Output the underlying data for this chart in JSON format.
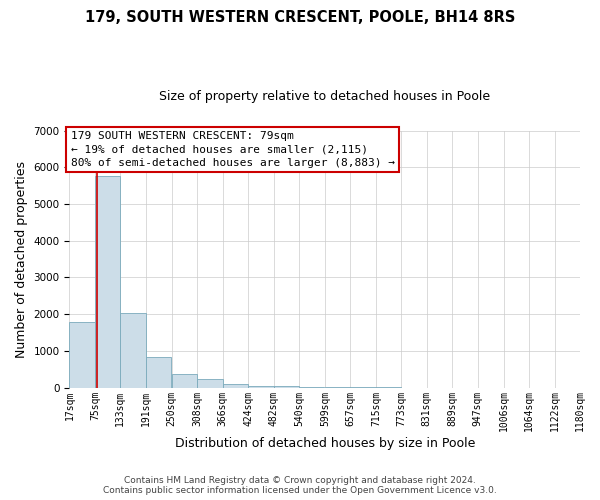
{
  "title": "179, SOUTH WESTERN CRESCENT, POOLE, BH14 8RS",
  "subtitle": "Size of property relative to detached houses in Poole",
  "xlabel": "Distribution of detached houses by size in Poole",
  "ylabel": "Number of detached properties",
  "bar_left_edges": [
    17,
    75,
    133,
    191,
    250,
    308,
    366,
    424,
    482,
    540,
    599,
    657,
    715,
    773,
    831,
    889,
    947,
    1006,
    1064,
    1122
  ],
  "bar_heights": [
    1780,
    5760,
    2040,
    820,
    370,
    220,
    100,
    55,
    30,
    15,
    8,
    4,
    2,
    0,
    0,
    0,
    0,
    0,
    0,
    0
  ],
  "bin_width": 58,
  "bar_color": "#ccdde8",
  "bar_edge_color": "#7aaabb",
  "grid_color": "#cccccc",
  "vline_x": 79,
  "vline_color": "#cc0000",
  "annotation_text": "179 SOUTH WESTERN CRESCENT: 79sqm\n← 19% of detached houses are smaller (2,115)\n80% of semi-detached houses are larger (8,883) →",
  "annotation_box_color": "#ffffff",
  "annotation_box_edge": "#cc0000",
  "ylim": [
    0,
    7000
  ],
  "xlim_min": 17,
  "xlim_max": 1180,
  "tick_labels": [
    "17sqm",
    "75sqm",
    "133sqm",
    "191sqm",
    "250sqm",
    "308sqm",
    "366sqm",
    "424sqm",
    "482sqm",
    "540sqm",
    "599sqm",
    "657sqm",
    "715sqm",
    "773sqm",
    "831sqm",
    "889sqm",
    "947sqm",
    "1006sqm",
    "1064sqm",
    "1122sqm",
    "1180sqm"
  ],
  "footer_line1": "Contains HM Land Registry data © Crown copyright and database right 2024.",
  "footer_line2": "Contains public sector information licensed under the Open Government Licence v3.0.",
  "background_color": "#ffffff",
  "title_fontsize": 10.5,
  "subtitle_fontsize": 9,
  "axis_label_fontsize": 9,
  "tick_fontsize": 7,
  "annotation_fontsize": 8,
  "footer_fontsize": 6.5
}
